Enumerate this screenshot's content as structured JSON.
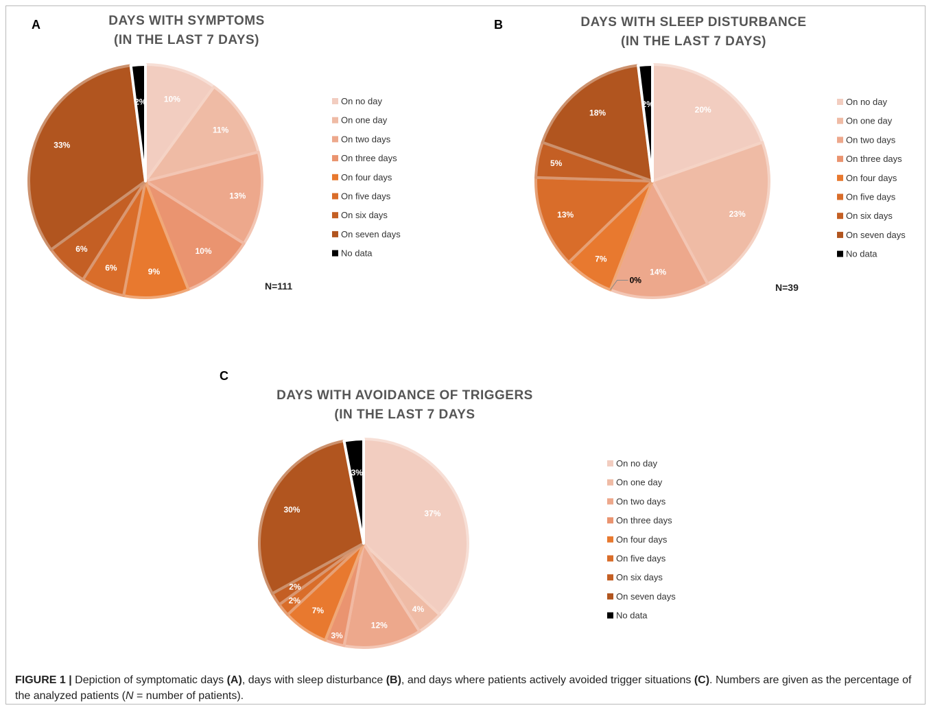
{
  "legend_labels": [
    "On no day",
    "On one day",
    "On two days",
    "On three days",
    "On four days",
    "On five days",
    "On six days",
    "On seven days",
    "No data"
  ],
  "colors": [
    "#f2cdc0",
    "#efbba5",
    "#eda88c",
    "#ea9470",
    "#e8792f",
    "#d96d2a",
    "#c45f24",
    "#b1551f",
    "#000000"
  ],
  "caption": {
    "lead": "FIGURE 1 |",
    "p1": " Depiction of symptomatic days ",
    "a": "(A)",
    "p2": ", days with sleep disturbance ",
    "b": "(B)",
    "p3": ", and days where patients actively avoided trigger situations ",
    "c": "(C)",
    "p4": ". Numbers are given as the percentage of the analyzed patients (",
    "n": "N",
    "p5": " = number of patients)."
  },
  "chart_data": [
    {
      "type": "pie",
      "panel": "A",
      "title_lines": [
        "DAYS WITH SYMPTOMS",
        "(IN THE LAST 7 DAYS)"
      ],
      "note": "N=111",
      "categories": [
        "On no day",
        "On one day",
        "On two days",
        "On three days",
        "On four days",
        "On five days",
        "On six days",
        "On seven days",
        "No data"
      ],
      "values": [
        10,
        11,
        13,
        10,
        9,
        6,
        6,
        33,
        2
      ],
      "labels": [
        "10%",
        "11%",
        "13%",
        "10%",
        "9%",
        "6%",
        "6%",
        "33%",
        "2%"
      ],
      "legend_position": "right"
    },
    {
      "type": "pie",
      "panel": "B",
      "title_lines": [
        "DAYS WITH SLEEP DISTURBANCE",
        "(IN THE LAST 7 DAYS)"
      ],
      "note": "N=39",
      "categories": [
        "On no day",
        "On one day",
        "On two days",
        "On three days",
        "On four days",
        "On five days",
        "On six days",
        "On seven days",
        "No data"
      ],
      "values": [
        20,
        23,
        14,
        0,
        7,
        13,
        5,
        18,
        2
      ],
      "labels": [
        "20%",
        "23%",
        "14%",
        "0%",
        "7%",
        "13%",
        "5%",
        "18%",
        "2%"
      ],
      "legend_position": "right"
    },
    {
      "type": "pie",
      "panel": "C",
      "title_lines": [
        "DAYS WITH AVOIDANCE OF TRIGGERS",
        "(IN THE LAST 7 DAYS"
      ],
      "note": "",
      "categories": [
        "On no day",
        "On one day",
        "On two days",
        "On three days",
        "On four days",
        "On five days",
        "On six days",
        "On seven days",
        "No data"
      ],
      "values": [
        37,
        4,
        12,
        3,
        7,
        2,
        2,
        30,
        3
      ],
      "labels": [
        "37%",
        "4%",
        "12%",
        "3%",
        "7%",
        "2%",
        "2%",
        "30%",
        "3%"
      ],
      "legend_position": "right"
    }
  ]
}
